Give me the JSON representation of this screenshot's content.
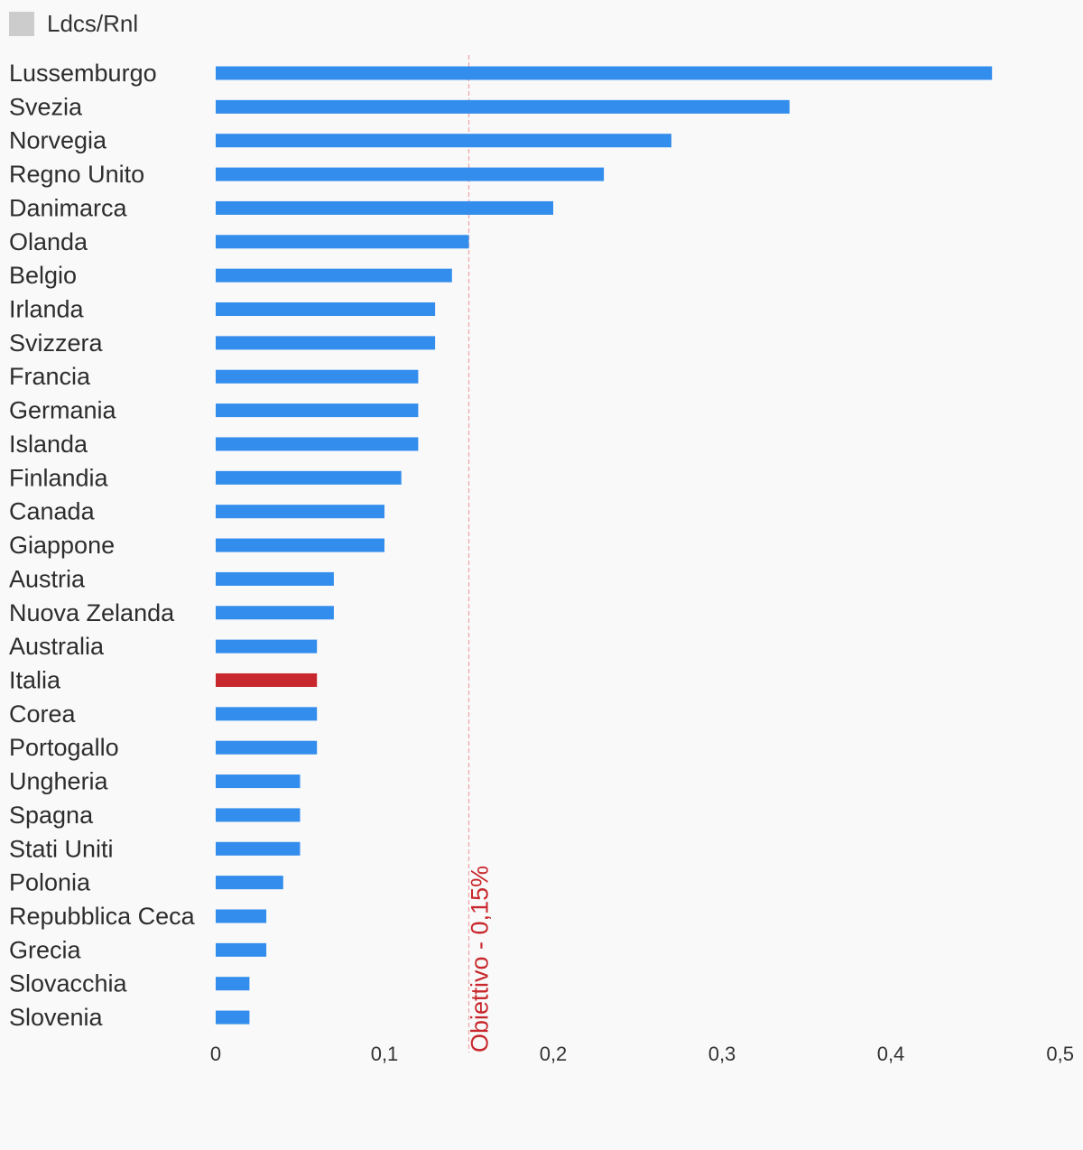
{
  "legend": {
    "label": "Ldcs/Rnl",
    "swatch_color": "#cccccc"
  },
  "colors": {
    "bar": "#338ded",
    "highlight": "#c8282d",
    "target_line": "#f5a3a6",
    "label": "#2d2d2d"
  },
  "chart_data": {
    "type": "bar",
    "orientation": "horizontal",
    "categories": [
      "Lussemburgo",
      "Svezia",
      "Norvegia",
      "Regno Unito",
      "Danimarca",
      "Olanda",
      "Belgio",
      "Irlanda",
      "Svizzera",
      "Francia",
      "Germania",
      "Islanda",
      "Finlandia",
      "Canada",
      "Giappone",
      "Austria",
      "Nuova Zelanda",
      "Australia",
      "Italia",
      "Corea",
      "Portogallo",
      "Ungheria",
      "Spagna",
      "Stati Uniti",
      "Polonia",
      "Repubblica Ceca",
      "Grecia",
      "Slovacchia",
      "Slovenia"
    ],
    "values": [
      0.46,
      0.34,
      0.27,
      0.23,
      0.2,
      0.15,
      0.14,
      0.13,
      0.13,
      0.12,
      0.12,
      0.12,
      0.11,
      0.1,
      0.1,
      0.07,
      0.07,
      0.06,
      0.06,
      0.06,
      0.06,
      0.05,
      0.05,
      0.05,
      0.04,
      0.03,
      0.03,
      0.02,
      0.02
    ],
    "highlight": "Italia",
    "xlim": [
      0,
      0.5
    ],
    "xticks": [
      "0",
      "0,1",
      "0,2",
      "0,3",
      "0,4",
      "0,5"
    ],
    "series": [
      {
        "name": "Ldcs/Rnl"
      }
    ],
    "target": {
      "value": 0.15,
      "label": "Obiettivo - 0,15%"
    },
    "legend_position": "top-left",
    "grid": false
  }
}
